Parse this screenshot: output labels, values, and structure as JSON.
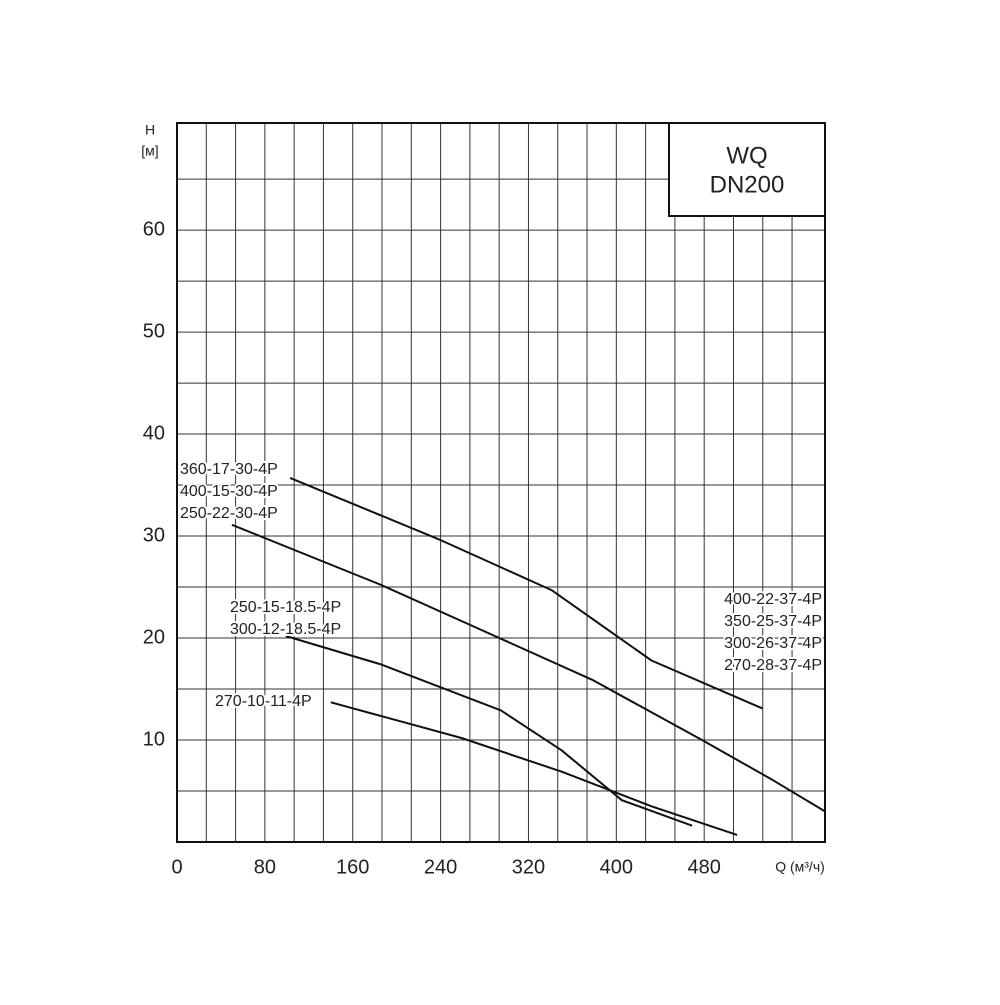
{
  "chart_data": {
    "type": "line",
    "title": [
      "WQ",
      "DN200"
    ],
    "y_label": [
      "H",
      "[м]"
    ],
    "x_label": "Q (м³/ч)",
    "xlim": [
      0,
      590
    ],
    "ylim": [
      0,
      70.5
    ],
    "xticks": [
      0,
      80,
      160,
      240,
      320,
      400,
      480
    ],
    "yticks": [
      10,
      20,
      30,
      40,
      50,
      60
    ],
    "x_grid": [
      26.67,
      53.33,
      80,
      106.67,
      133.33,
      160,
      186.67,
      213.33,
      240,
      266.67,
      293.33,
      320,
      346.67,
      373.33,
      400,
      426.67,
      453.33,
      480,
      506.67,
      533.33,
      560
    ],
    "y_grid": [
      5,
      10,
      15,
      20,
      25,
      30,
      35,
      40,
      45,
      50,
      55,
      60,
      65
    ],
    "grid": true,
    "series": [
      {
        "color": "#111111",
        "x": [
          103,
          240,
          341,
          432,
          533
        ],
        "values": [
          35.7,
          29.6,
          24.7,
          17.8,
          13.1
        ]
      },
      {
        "color": "#111111",
        "x": [
          50,
          186,
          277,
          378,
          478,
          542,
          590
        ],
        "values": [
          31.1,
          25.2,
          20.8,
          15.9,
          10,
          6.1,
          3
        ]
      },
      {
        "color": "#111111",
        "x": [
          99,
          186,
          295,
          350,
          405,
          469
        ],
        "values": [
          20.2,
          17.4,
          12.9,
          9,
          4.1,
          1.6
        ]
      },
      {
        "color": "#111111",
        "x": [
          140,
          259,
          350,
          432,
          510
        ],
        "values": [
          13.7,
          10.2,
          6.9,
          3.5,
          0.7
        ]
      }
    ],
    "curve_labels": [
      [
        "360-17-30-4P",
        "400-15-30-4P",
        "250-22-30-4P"
      ],
      [
        "250-15-18.5-4P",
        "300-12-18.5-4P"
      ],
      [
        "270-10-11-4P"
      ],
      [
        "400-22-37-4P",
        "350-25-37-4P",
        "300-26-37-4P",
        "270-28-37-4P"
      ]
    ]
  }
}
